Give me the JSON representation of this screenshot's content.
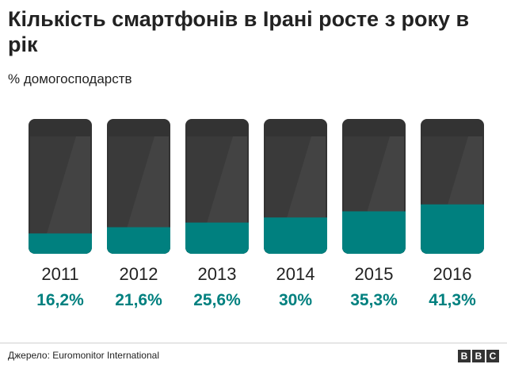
{
  "chart_data": {
    "type": "bar",
    "title": "Кількість смартфонів в Ірані росте з року в рік",
    "subtitle": "% домогосподарств",
    "categories": [
      "2011",
      "2012",
      "2013",
      "2014",
      "2015",
      "2016"
    ],
    "values": [
      16.2,
      21.6,
      25.6,
      30,
      35.3,
      41.3
    ],
    "value_labels": [
      "16,2%",
      "21,6%",
      "25,6%",
      "30%",
      "35,3%",
      "41,3%"
    ],
    "ylim": [
      0,
      100
    ],
    "xlabel": "",
    "ylabel": "% домогосподарств"
  },
  "footer": {
    "source": "Джерело: Euromonitor International",
    "logo_letters": [
      "B",
      "B",
      "C"
    ]
  },
  "colors": {
    "fill": "#00807f",
    "phone_body": "#333333",
    "phone_screen": "#3a3a3a",
    "phone_glare": "#4a4a4a",
    "value_text": "#00807f"
  }
}
